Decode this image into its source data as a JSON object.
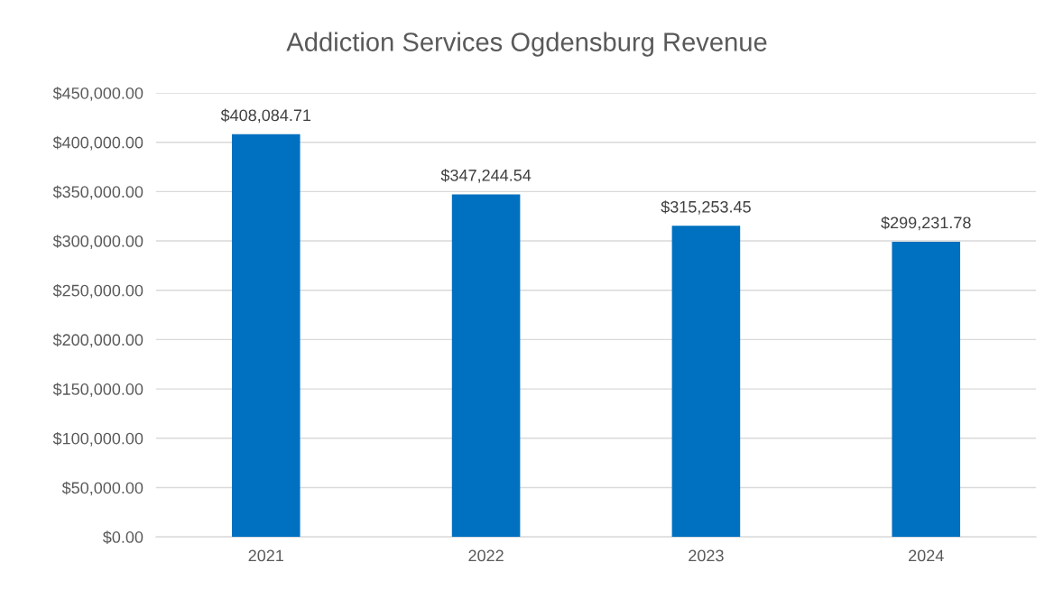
{
  "chart_data": {
    "type": "bar",
    "title": "Addiction Services Ogdensburg Revenue",
    "categories": [
      "2021",
      "2022",
      "2023",
      "2024"
    ],
    "values": [
      408084.71,
      347244.54,
      315253.45,
      299231.78
    ],
    "value_labels": [
      "$408,084.71",
      "$347,244.54",
      "$315,253.45",
      "$299,231.78"
    ],
    "color": "#0070c0",
    "ylim": [
      0,
      450000
    ],
    "yticks": [
      {
        "value": 0,
        "label": "$0.00"
      },
      {
        "value": 50000,
        "label": "$50,000.00"
      },
      {
        "value": 100000,
        "label": "$100,000.00"
      },
      {
        "value": 150000,
        "label": "$150,000.00"
      },
      {
        "value": 200000,
        "label": "$200,000.00"
      },
      {
        "value": 250000,
        "label": "$250,000.00"
      },
      {
        "value": 300000,
        "label": "$300,000.00"
      },
      {
        "value": 350000,
        "label": "$350,000.00"
      },
      {
        "value": 400000,
        "label": "$400,000.00"
      },
      {
        "value": 450000,
        "label": "$450,000.00"
      }
    ],
    "grid": "y"
  }
}
